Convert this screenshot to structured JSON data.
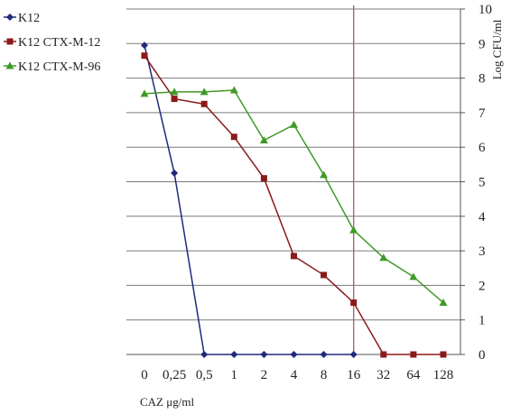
{
  "chart_data": {
    "type": "line",
    "categories": [
      "0",
      "0,25",
      "0,5",
      "1",
      "2",
      "4",
      "8",
      "16",
      "32",
      "64",
      "128"
    ],
    "series": [
      {
        "name": "K12",
        "color": "#1f2a7a",
        "marker": "diamond",
        "values": [
          8.95,
          5.25,
          0,
          0,
          0,
          0,
          0,
          0,
          null,
          null,
          null
        ]
      },
      {
        "name": "K12 CTX-M-12",
        "color": "#8b1a1a",
        "marker": "square",
        "values": [
          8.65,
          7.4,
          7.25,
          6.3,
          5.1,
          2.85,
          2.3,
          1.5,
          0,
          0,
          0
        ]
      },
      {
        "name": "K12 CTX-M-96",
        "color": "#3f9a25",
        "marker": "triangle",
        "values": [
          7.55,
          7.6,
          7.6,
          7.65,
          6.2,
          6.65,
          5.2,
          3.6,
          2.8,
          2.25,
          1.5
        ]
      }
    ],
    "xlabel": "CAZ μg/ml",
    "ylabel": "Log CFU/ml",
    "ylim": [
      0,
      10
    ],
    "yticks": [
      "0",
      "1",
      "2",
      "3",
      "4",
      "5",
      "6",
      "7",
      "8",
      "9",
      "10"
    ],
    "grid": true,
    "y_axis_side": "right",
    "legend_position": "top-left",
    "reference_line_at_category": "16",
    "reference_line_color": "#a56b6b"
  }
}
